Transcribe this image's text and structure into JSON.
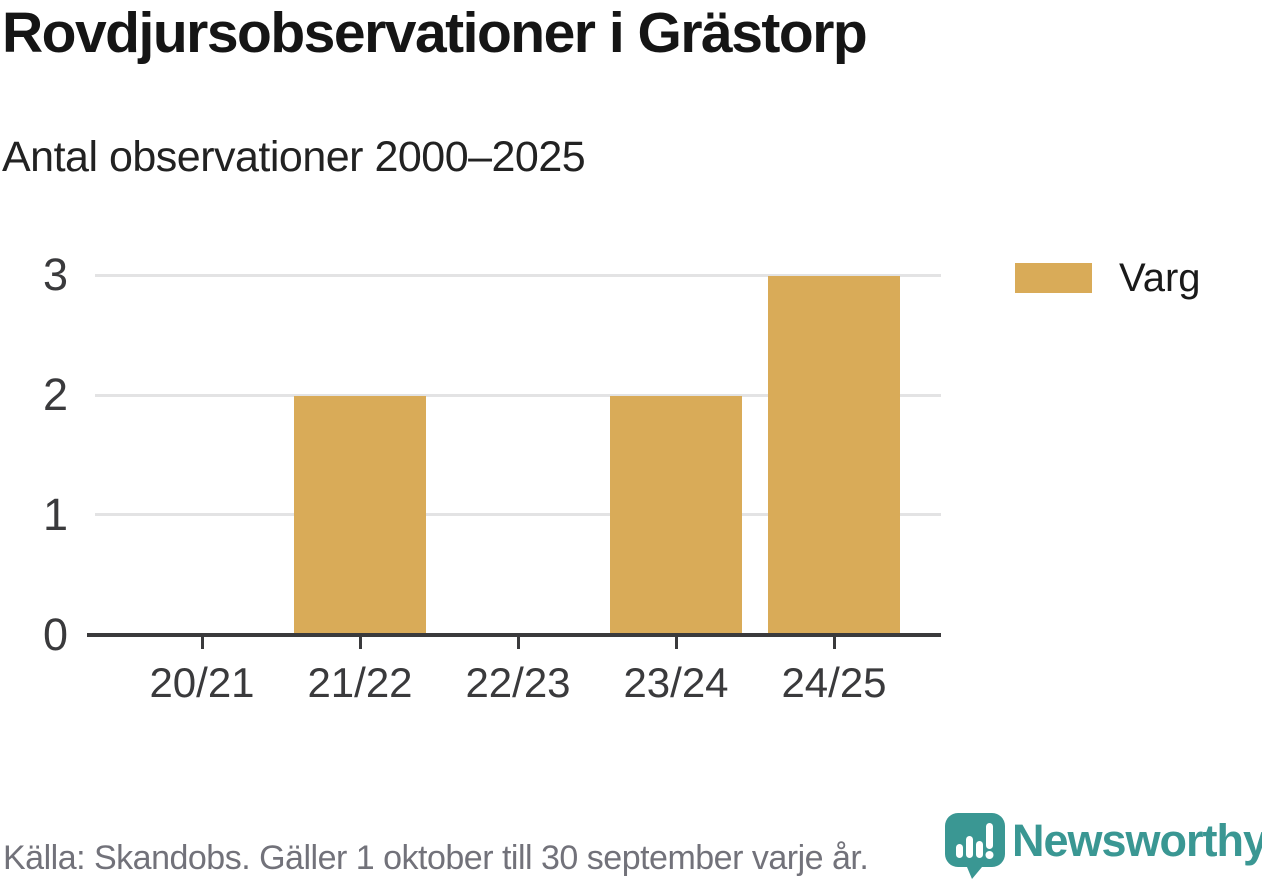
{
  "header": {
    "title": "Rovdjursobservationer i Grästorp",
    "subtitle": "Antal observationer 2000–2025"
  },
  "chart_data": {
    "type": "bar",
    "title": "Rovdjursobservationer i Grästorp",
    "subtitle": "Antal observationer 2000–2025",
    "categories": [
      "20/21",
      "21/22",
      "22/23",
      "23/24",
      "24/25"
    ],
    "series": [
      {
        "name": "Varg",
        "values": [
          0,
          2,
          0,
          2,
          3
        ],
        "color": "#D9AB58"
      }
    ],
    "xlabel": "",
    "ylabel": "",
    "ylim": [
      0,
      3
    ],
    "yticks": [
      0,
      1,
      2,
      3
    ],
    "grid": true,
    "legend_position": "right"
  },
  "legend": {
    "items": [
      {
        "label": "Varg",
        "color": "#D9AB58"
      }
    ]
  },
  "footer": {
    "source": "Källa: Skandobs. Gäller 1 oktober till 30 september varje år.",
    "brand": "Newsworthy"
  },
  "colors": {
    "bar": "#D9AB58",
    "axis": "#3A3A3C",
    "grid": "#E3E3E4",
    "teal": "#3A9793",
    "text": "#1A1A1A",
    "muted": "#72727A"
  }
}
